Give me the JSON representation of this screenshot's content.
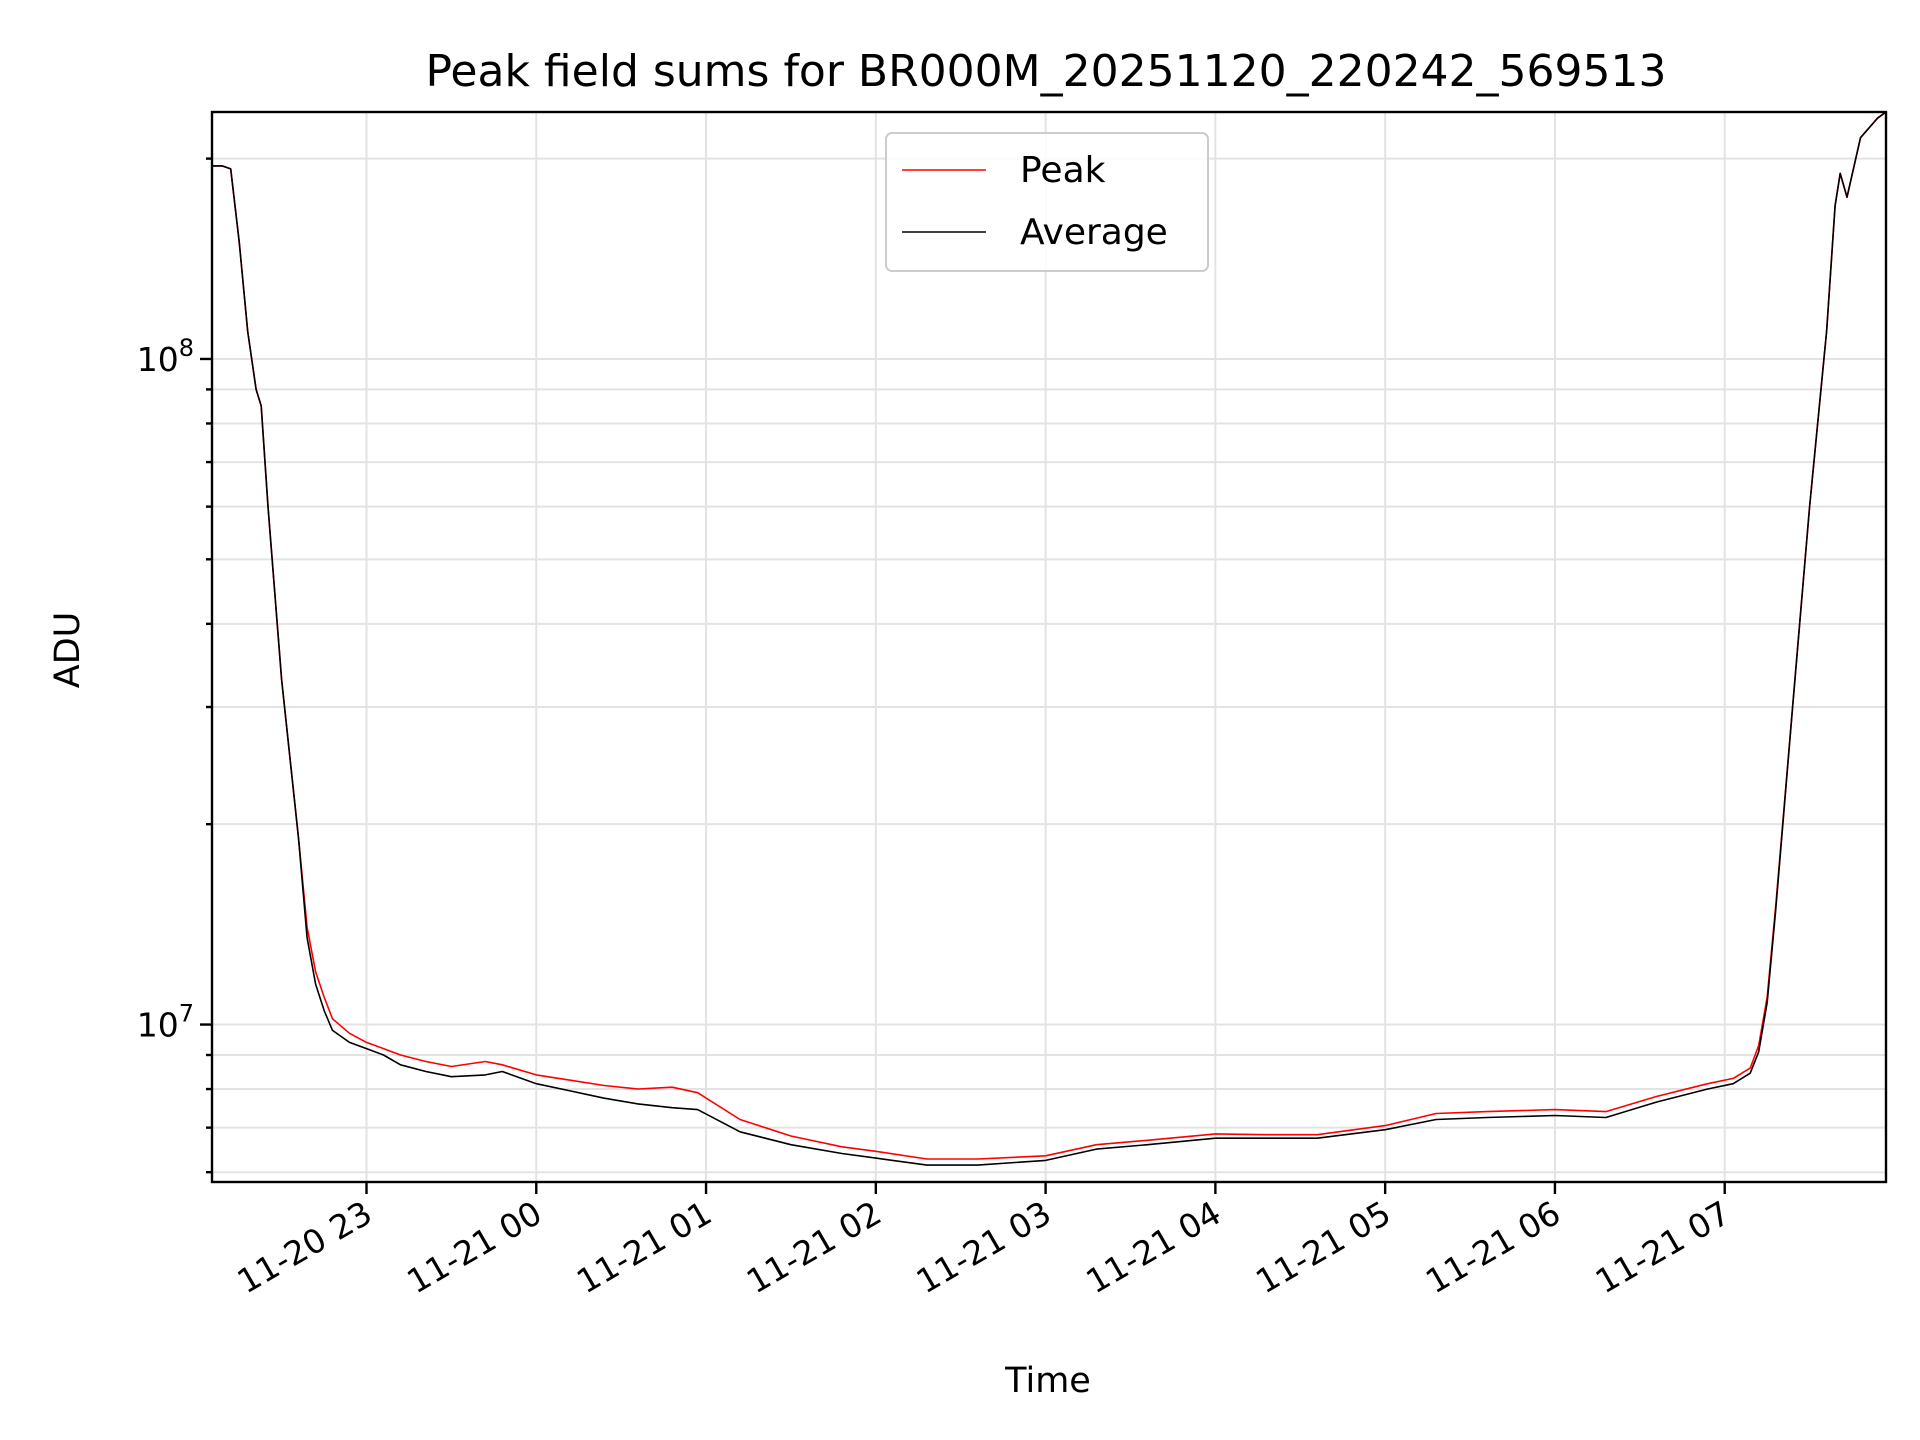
{
  "chart_data": {
    "type": "line",
    "title": "Peak field sums for BR000M_20251120_220242_569513",
    "xlabel": "Time",
    "ylabel": "ADU",
    "y_scale": "log",
    "ylim": [
      5800000,
      235000000
    ],
    "xlim_hours": [
      22.09,
      31.95
    ],
    "x_ticks": [
      {
        "label": "11-20 23",
        "hour": 23
      },
      {
        "label": "11-21 00",
        "hour": 24
      },
      {
        "label": "11-21 01",
        "hour": 25
      },
      {
        "label": "11-21 02",
        "hour": 26
      },
      {
        "label": "11-21 03",
        "hour": 27
      },
      {
        "label": "11-21 04",
        "hour": 28
      },
      {
        "label": "11-21 05",
        "hour": 29
      },
      {
        "label": "11-21 06",
        "hour": 30
      },
      {
        "label": "11-21 07",
        "hour": 31
      }
    ],
    "y_ticks": [
      {
        "base": "10",
        "exp": "7",
        "value": 10000000
      },
      {
        "base": "10",
        "exp": "8",
        "value": 100000000
      }
    ],
    "grid": true,
    "legend": {
      "position": "upper-center"
    },
    "series": [
      {
        "name": "Peak",
        "color": "#ff0000",
        "x_hours": [
          22.09,
          22.15,
          22.2,
          22.25,
          22.3,
          22.35,
          22.38,
          22.42,
          22.5,
          22.6,
          22.65,
          22.7,
          22.75,
          22.8,
          22.9,
          23.0,
          23.1,
          23.2,
          23.35,
          23.5,
          23.7,
          23.8,
          24.0,
          24.2,
          24.4,
          24.6,
          24.8,
          24.95,
          25.2,
          25.5,
          25.8,
          26.0,
          26.3,
          26.6,
          27.0,
          27.3,
          27.6,
          28.0,
          28.3,
          28.6,
          29.0,
          29.3,
          29.6,
          30.0,
          30.3,
          30.6,
          30.9,
          31.05,
          31.15,
          31.2,
          31.25,
          31.3,
          31.4,
          31.5,
          31.6,
          31.65,
          31.68,
          31.72,
          31.8,
          31.9,
          31.95
        ],
        "values": [
          195000000,
          195000000,
          193000000,
          150000000,
          110000000,
          90000000,
          85000000,
          60000000,
          33000000,
          19000000,
          14000000,
          12000000,
          11000000,
          10200000,
          9700000,
          9400000,
          9200000,
          9000000,
          8800000,
          8650000,
          8800000,
          8700000,
          8400000,
          8250000,
          8100000,
          8000000,
          8050000,
          7900000,
          7200000,
          6800000,
          6550000,
          6450000,
          6280000,
          6280000,
          6350000,
          6600000,
          6700000,
          6850000,
          6830000,
          6830000,
          7050000,
          7350000,
          7400000,
          7450000,
          7400000,
          7800000,
          8150000,
          8300000,
          8600000,
          9300000,
          11000000,
          15000000,
          30000000,
          60000000,
          110000000,
          170000000,
          190000000,
          175000000,
          215000000,
          230000000,
          235000000
        ]
      },
      {
        "name": "Average",
        "color": "#000000",
        "x_hours": [
          22.09,
          22.15,
          22.2,
          22.25,
          22.3,
          22.35,
          22.38,
          22.42,
          22.5,
          22.6,
          22.65,
          22.7,
          22.75,
          22.8,
          22.9,
          23.0,
          23.1,
          23.2,
          23.35,
          23.5,
          23.7,
          23.8,
          24.0,
          24.2,
          24.4,
          24.6,
          24.8,
          24.95,
          25.2,
          25.5,
          25.8,
          26.0,
          26.3,
          26.6,
          27.0,
          27.3,
          27.6,
          28.0,
          28.3,
          28.6,
          29.0,
          29.3,
          29.6,
          30.0,
          30.3,
          30.6,
          30.9,
          31.05,
          31.15,
          31.2,
          31.25,
          31.3,
          31.4,
          31.5,
          31.6,
          31.65,
          31.68,
          31.72,
          31.8,
          31.9,
          31.95
        ],
        "values": [
          195000000,
          195000000,
          193000000,
          150000000,
          110000000,
          90000000,
          85000000,
          60000000,
          33000000,
          19000000,
          13500000,
          11500000,
          10500000,
          9800000,
          9400000,
          9200000,
          9000000,
          8700000,
          8500000,
          8350000,
          8400000,
          8500000,
          8150000,
          7950000,
          7750000,
          7600000,
          7500000,
          7450000,
          6900000,
          6600000,
          6400000,
          6300000,
          6150000,
          6150000,
          6250000,
          6500000,
          6600000,
          6750000,
          6750000,
          6750000,
          6950000,
          7200000,
          7250000,
          7300000,
          7250000,
          7650000,
          8000000,
          8150000,
          8450000,
          9100000,
          10800000,
          14800000,
          30000000,
          60000000,
          110000000,
          170000000,
          190000000,
          175000000,
          215000000,
          230000000,
          235000000
        ]
      }
    ]
  }
}
